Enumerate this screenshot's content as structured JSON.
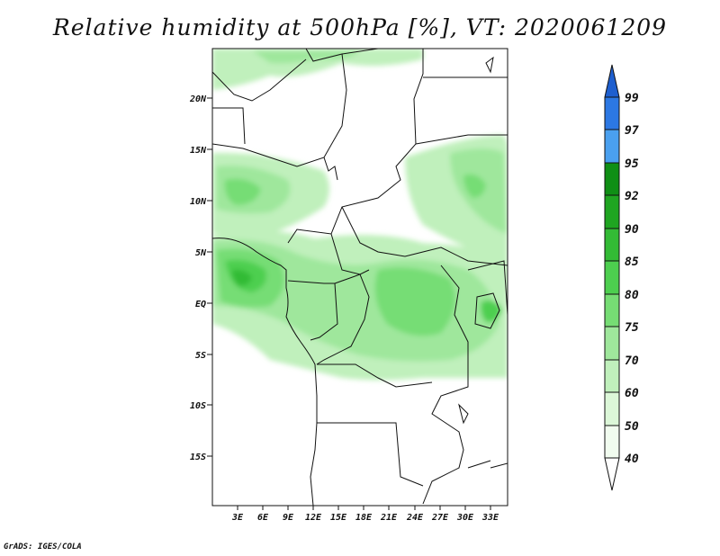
{
  "title": "Relative humidity at 500hPa [%], VT: 2020061209",
  "footer": "GrADS: IGES/COLA",
  "map": {
    "lat_labels": [
      "20N",
      "15N",
      "10N",
      "5N",
      "EQ",
      "5S",
      "10S",
      "15S"
    ],
    "lon_labels": [
      "3E",
      "6E",
      "9E",
      "12E",
      "15E",
      "18E",
      "21E",
      "24E",
      "27E",
      "30E",
      "33E"
    ]
  },
  "colorbar": {
    "levels": [
      "99",
      "97",
      "95",
      "92",
      "90",
      "85",
      "80",
      "75",
      "70",
      "60",
      "50",
      "40"
    ],
    "colors": [
      "#1e5fcf",
      "#2c78e3",
      "#4aa0ef",
      "#0f8f15",
      "#1fa521",
      "#33bb35",
      "#4dcf4f",
      "#76dd74",
      "#9fe79c",
      "#c0f0bc",
      "#dcf7d8",
      "#f1fcef"
    ]
  }
}
